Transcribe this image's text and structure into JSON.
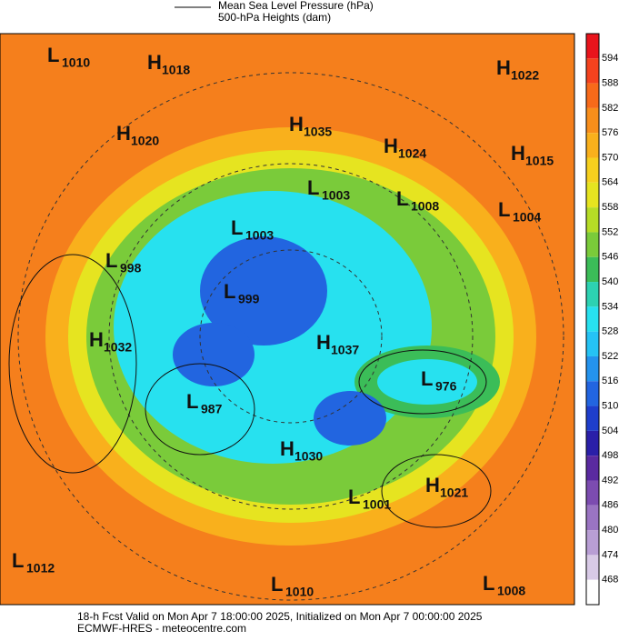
{
  "header": {
    "legend_line1": "Mean Sea Level Pressure (hPa)",
    "legend_line2": "500-hPa Heights (dam)"
  },
  "centers": [
    {
      "kind": "L",
      "value": "1010"
    },
    {
      "kind": "H",
      "value": "1018"
    },
    {
      "kind": "H",
      "value": "1022"
    },
    {
      "kind": "H",
      "value": "1035"
    },
    {
      "kind": "H",
      "value": "1020"
    },
    {
      "kind": "H",
      "value": "1024"
    },
    {
      "kind": "H",
      "value": "1015"
    },
    {
      "kind": "L",
      "value": "1003"
    },
    {
      "kind": "L",
      "value": "1008"
    },
    {
      "kind": "L",
      "value": "1004"
    },
    {
      "kind": "L",
      "value": "1003"
    },
    {
      "kind": "L",
      "value": "998"
    },
    {
      "kind": "L",
      "value": "999"
    },
    {
      "kind": "H",
      "value": "1037"
    },
    {
      "kind": "H",
      "value": "1032"
    },
    {
      "kind": "L",
      "value": "976"
    },
    {
      "kind": "L",
      "value": "987"
    },
    {
      "kind": "H",
      "value": "1030"
    },
    {
      "kind": "H",
      "value": "1021"
    },
    {
      "kind": "L",
      "value": "1001"
    },
    {
      "kind": "L",
      "value": "1012"
    },
    {
      "kind": "L",
      "value": "1010"
    },
    {
      "kind": "L",
      "value": "1008"
    }
  ],
  "colorbar": {
    "labels": [
      594,
      588,
      582,
      576,
      570,
      564,
      558,
      552,
      546,
      540,
      534,
      528,
      522,
      516,
      510,
      504,
      498,
      492,
      486,
      480,
      474,
      468
    ],
    "colors": [
      "#e8141c",
      "#f4421e",
      "#f76a1a",
      "#f88e1b",
      "#f9b01c",
      "#f6d01e",
      "#e6e420",
      "#b6dc26",
      "#7acb3a",
      "#3bbd58",
      "#2dd2b2",
      "#27e1ef",
      "#25c3f5",
      "#2493ee",
      "#2265e0",
      "#1e3ecc",
      "#2a1fa8",
      "#5a2aa0",
      "#7c4cb0",
      "#9a74c2",
      "#b89ed4",
      "#d8cae6",
      "#ffffff"
    ]
  },
  "footer": {
    "line1": "18-h Fcst Valid on Mon Apr  7 18:00:00 2025, Initialized on Mon Apr  7 00:00:00 2025",
    "line2": "ECMWF-HRES - meteocentre.com"
  }
}
